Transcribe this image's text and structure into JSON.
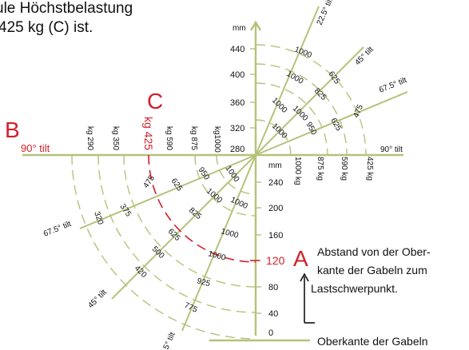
{
  "header": {
    "line1": "ule Höchstbelastung",
    "line2": "425 kg (C) ist."
  },
  "markers": {
    "b": "B",
    "c": "C",
    "a": "A"
  },
  "axis_labels": {
    "mm_top": "mm",
    "mm_lower": "mm",
    "tilt_left": "90° tilt",
    "tilt_right": "90° tilt",
    "tilt_22_5": "22.5° tilt",
    "tilt_45_upper": "45° tilt",
    "tilt_67_5_upper": "67.5° tilt",
    "tilt_67_5_lower": "67.5° tilt",
    "tilt_45_lower": "45° tilt",
    "tilt_22_5_lower": "5° tilt"
  },
  "upper_scale": [
    "440",
    "400",
    "360",
    "320",
    "280"
  ],
  "lower_scale": [
    "240",
    "200",
    "160",
    "120",
    "80",
    "40",
    "0"
  ],
  "left_kg_labels": [
    "kg 290",
    "kg 350",
    "kg 425",
    "kg 590",
    "kg 875",
    "kg1000"
  ],
  "right_kg_labels": [
    "1000 kg",
    "875 kg",
    "590 kg",
    "425 kg"
  ],
  "arc_labels_upper": {
    "r22": [
      "1000"
    ],
    "r45": [
      "1000",
      "825",
      "625"
    ],
    "r67": [
      "1000",
      "1000",
      "950",
      "625",
      "475"
    ]
  },
  "arc_labels_lower": {
    "r67": [
      "1000",
      "950",
      "625",
      "475",
      "375",
      "320"
    ],
    "r45": [
      "1000",
      "825",
      "625",
      "500",
      "420"
    ],
    "r22": [
      "1000",
      "1000",
      "925",
      "775"
    ]
  },
  "notes": {
    "distance_line1": "Abstand von der Ober-",
    "distance_line2": "kante der Gabeln zum",
    "distance_line3": "Lastschwerpunkt.",
    "fork_top": "Oberkante der Gabeln"
  }
}
